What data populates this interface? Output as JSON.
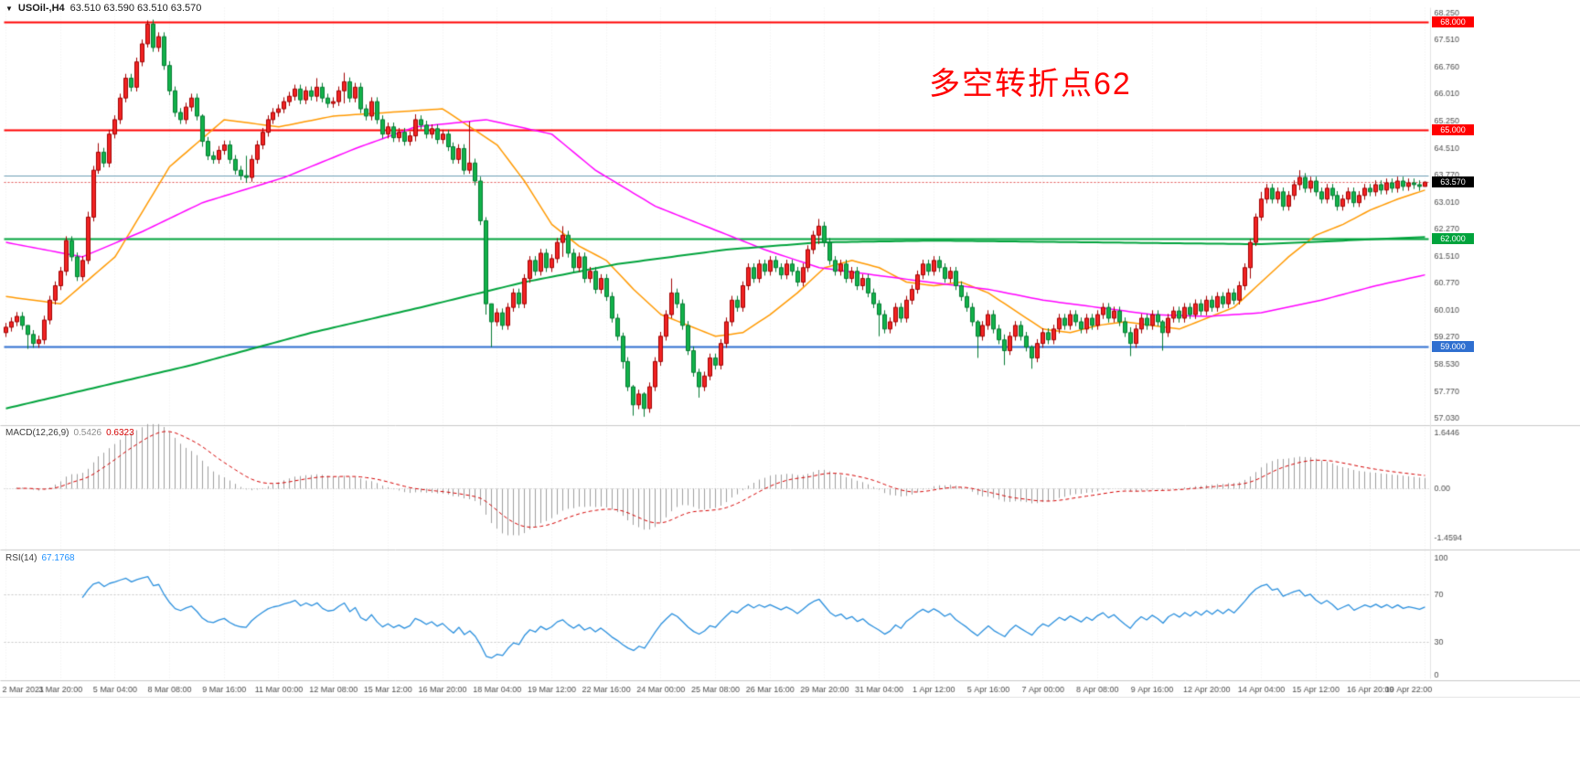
{
  "window": {
    "title_symbol": "USOil-,H4",
    "title_quotes": "63.510 63.590 63.510 63.570"
  },
  "annotation": {
    "text": "多空转折点62",
    "color": "#ff0000"
  },
  "price_axis": {
    "ticks": [
      "68.250",
      "67.510",
      "66.760",
      "66.010",
      "65.250",
      "64.510",
      "63.770",
      "63.010",
      "62.270",
      "61.510",
      "60.770",
      "60.010",
      "59.270",
      "58.530",
      "57.770",
      "57.030"
    ],
    "current": {
      "price": 63.57,
      "label": "63.570",
      "color": "#000000"
    }
  },
  "indicators": {
    "macd": {
      "label": "MACD(12,26,9)",
      "value_main": "0.5426",
      "value_signal": "0.6323",
      "ticks": [
        "1.6446",
        "0.00",
        "-1.4594"
      ],
      "params": {
        "fast": 12,
        "slow": 26,
        "signal": 9
      },
      "histogram_color": "#9e9e9e",
      "signal_color": "#d40000"
    },
    "rsi": {
      "label": "RSI(14)",
      "value": "67.1768",
      "period": 14,
      "ticks": [
        "100",
        "70",
        "30",
        "0"
      ],
      "levels": [
        70,
        30
      ],
      "line_color": "#2a8fdd"
    }
  },
  "chart_data": {
    "type": "candlestick-ohlc",
    "title": "USOil-,H4",
    "symbol": "USOil",
    "timeframe": "H4",
    "visible_range": {
      "start": "2 Mar 2021",
      "end": "19 Apr 2021"
    },
    "price_range": [
      57.03,
      68.25
    ],
    "up_color": "#f22323",
    "down_color": "#12b24a",
    "x_labels": [
      "2 Mar 2021",
      "3 Mar 20:00",
      "5 Mar 04:00",
      "8 Mar 08:00",
      "9 Mar 16:00",
      "11 Mar 00:00",
      "12 Mar 08:00",
      "15 Mar 12:00",
      "16 Mar 20:00",
      "18 Mar 04:00",
      "19 Mar 12:00",
      "22 Mar 16:00",
      "24 Mar 00:00",
      "25 Mar 08:00",
      "26 Mar 16:00",
      "29 Mar 20:00",
      "31 Mar 04:00",
      "1 Apr 12:00",
      "5 Apr 16:00",
      "7 Apr 00:00",
      "8 Apr 08:00",
      "9 Apr 16:00",
      "12 Apr 20:00",
      "14 Apr 04:00",
      "15 Apr 12:00",
      "16 Apr 20:00",
      "19 Apr 22:00"
    ],
    "first_open": 59.4,
    "closes": [
      59.55,
      59.7,
      59.85,
      59.6,
      59.35,
      59.1,
      59.2,
      59.75,
      60.3,
      60.7,
      61.1,
      61.95,
      61.5,
      60.95,
      61.4,
      62.6,
      63.9,
      64.4,
      64.1,
      64.9,
      65.3,
      65.9,
      66.45,
      66.2,
      66.9,
      67.4,
      67.95,
      67.3,
      67.6,
      66.8,
      66.1,
      65.5,
      65.3,
      65.65,
      65.9,
      65.4,
      64.7,
      64.3,
      64.2,
      64.45,
      64.6,
      64.2,
      63.9,
      63.75,
      63.7,
      64.2,
      64.6,
      64.95,
      65.3,
      65.5,
      65.6,
      65.8,
      65.95,
      66.15,
      65.85,
      66.1,
      65.95,
      66.2,
      65.9,
      65.75,
      65.8,
      66.1,
      66.35,
      65.9,
      66.2,
      65.6,
      65.4,
      65.8,
      65.3,
      64.9,
      65.1,
      64.8,
      64.95,
      64.7,
      64.85,
      65.3,
      65.15,
      64.9,
      65.05,
      64.75,
      64.9,
      64.55,
      64.2,
      64.5,
      63.9,
      64.1,
      63.6,
      62.5,
      60.2,
      59.7,
      59.95,
      59.6,
      60.1,
      60.5,
      60.2,
      60.9,
      61.4,
      61.1,
      61.6,
      61.2,
      61.45,
      61.9,
      62.1,
      61.6,
      61.2,
      61.5,
      60.9,
      61.1,
      60.6,
      60.9,
      60.4,
      59.8,
      59.3,
      58.6,
      57.9,
      57.4,
      57.7,
      57.3,
      57.9,
      58.6,
      59.3,
      59.9,
      60.5,
      60.2,
      59.6,
      58.9,
      58.3,
      57.9,
      58.2,
      58.7,
      58.5,
      59.1,
      59.7,
      60.3,
      60.1,
      60.7,
      61.2,
      60.9,
      61.3,
      61.1,
      61.4,
      61.2,
      61.0,
      61.3,
      61.1,
      60.8,
      61.2,
      61.7,
      62.1,
      62.35,
      61.9,
      61.4,
      61.1,
      61.3,
      60.9,
      61.1,
      60.7,
      60.9,
      60.5,
      60.2,
      59.9,
      59.5,
      59.7,
      60.1,
      59.8,
      60.3,
      60.6,
      61.0,
      61.3,
      61.1,
      61.4,
      61.2,
      60.9,
      61.1,
      60.7,
      60.4,
      60.1,
      59.7,
      59.3,
      59.6,
      59.9,
      59.5,
      59.2,
      58.9,
      59.3,
      59.6,
      59.3,
      59.0,
      58.7,
      59.1,
      59.4,
      59.2,
      59.5,
      59.8,
      59.6,
      59.9,
      59.7,
      59.5,
      59.8,
      59.6,
      59.9,
      60.1,
      59.8,
      60.0,
      59.7,
      59.4,
      59.1,
      59.5,
      59.8,
      59.6,
      59.9,
      59.7,
      59.4,
      59.8,
      60.0,
      59.8,
      60.1,
      59.9,
      60.2,
      60.0,
      60.3,
      60.1,
      60.4,
      60.2,
      60.5,
      60.3,
      60.7,
      61.2,
      61.9,
      62.6,
      63.1,
      63.4,
      63.1,
      63.3,
      62.9,
      63.2,
      63.5,
      63.7,
      63.4,
      63.6,
      63.3,
      63.1,
      63.4,
      63.2,
      62.9,
      63.1,
      63.3,
      63.0,
      63.2,
      63.4,
      63.3,
      63.5,
      63.35,
      63.55,
      63.4,
      63.6,
      63.45,
      63.55,
      63.5,
      63.45,
      63.57
    ],
    "extremes": {
      "4": [
        59.6,
        58.95
      ],
      "15": [
        62.75,
        61.3
      ],
      "17": [
        64.65,
        63.8
      ],
      "26": [
        68.05,
        67.3
      ],
      "36": [
        65.45,
        64.55
      ],
      "44": [
        64.3,
        63.55
      ],
      "57": [
        66.45,
        65.8
      ],
      "62": [
        66.6,
        65.75
      ],
      "75": [
        65.45,
        64.7
      ],
      "85": [
        65.25,
        63.8
      ],
      "88": [
        62.6,
        59.9
      ],
      "89": [
        60.2,
        59.0
      ],
      "102": [
        62.35,
        61.5
      ],
      "113": [
        59.4,
        58.4
      ],
      "115": [
        57.95,
        57.1
      ],
      "117": [
        57.75,
        57.07
      ],
      "122": [
        60.9,
        59.8
      ],
      "127": [
        58.4,
        57.6
      ],
      "149": [
        62.55,
        61.85
      ],
      "160": [
        60.3,
        59.3
      ],
      "178": [
        59.75,
        58.7
      ],
      "183": [
        59.35,
        58.5
      ],
      "188": [
        59.05,
        58.4
      ],
      "206": [
        59.55,
        58.75
      ],
      "212": [
        59.75,
        58.9
      ],
      "228": [
        62.0,
        60.9
      ],
      "229": [
        62.7,
        61.8
      ],
      "230": [
        63.3,
        62.5
      ],
      "237": [
        63.9,
        63.35
      ],
      "260": [
        63.59,
        63.51
      ]
    },
    "moving_averages": [
      {
        "name": "ma-fast",
        "color": "#ff9900",
        "width": 1.5,
        "points": [
          [
            0,
            60.4
          ],
          [
            10,
            60.2
          ],
          [
            20,
            61.5
          ],
          [
            30,
            64.0
          ],
          [
            40,
            65.3
          ],
          [
            50,
            65.1
          ],
          [
            60,
            65.4
          ],
          [
            70,
            65.5
          ],
          [
            80,
            65.6
          ],
          [
            90,
            64.6
          ],
          [
            95,
            63.6
          ],
          [
            100,
            62.4
          ],
          [
            105,
            61.8
          ],
          [
            110,
            61.4
          ],
          [
            115,
            60.6
          ],
          [
            120,
            59.9
          ],
          [
            125,
            59.6
          ],
          [
            130,
            59.3
          ],
          [
            135,
            59.4
          ],
          [
            140,
            59.9
          ],
          [
            145,
            60.5
          ],
          [
            150,
            61.2
          ],
          [
            155,
            61.4
          ],
          [
            160,
            61.2
          ],
          [
            165,
            60.8
          ],
          [
            170,
            60.7
          ],
          [
            175,
            60.8
          ],
          [
            180,
            60.5
          ],
          [
            185,
            60.0
          ],
          [
            190,
            59.5
          ],
          [
            195,
            59.4
          ],
          [
            200,
            59.6
          ],
          [
            205,
            59.7
          ],
          [
            210,
            59.6
          ],
          [
            215,
            59.5
          ],
          [
            220,
            59.8
          ],
          [
            225,
            60.1
          ],
          [
            230,
            60.8
          ],
          [
            235,
            61.5
          ],
          [
            240,
            62.1
          ],
          [
            245,
            62.4
          ],
          [
            250,
            62.8
          ],
          [
            255,
            63.1
          ],
          [
            260,
            63.35
          ]
        ]
      },
      {
        "name": "ma-medium",
        "color": "#ff00ff",
        "width": 1.5,
        "points": [
          [
            0,
            61.9
          ],
          [
            14,
            61.5
          ],
          [
            25,
            62.2
          ],
          [
            36,
            63.0
          ],
          [
            51,
            63.7
          ],
          [
            64,
            64.5
          ],
          [
            75,
            65.1
          ],
          [
            88,
            65.3
          ],
          [
            100,
            64.9
          ],
          [
            108,
            63.9
          ],
          [
            119,
            62.9
          ],
          [
            129,
            62.3
          ],
          [
            139,
            61.7
          ],
          [
            149,
            61.2
          ],
          [
            159,
            61.0
          ],
          [
            169,
            60.8
          ],
          [
            180,
            60.6
          ],
          [
            190,
            60.3
          ],
          [
            200,
            60.1
          ],
          [
            210,
            59.9
          ],
          [
            220,
            59.85
          ],
          [
            230,
            59.95
          ],
          [
            241,
            60.3
          ],
          [
            251,
            60.7
          ],
          [
            260,
            61.0
          ]
        ]
      },
      {
        "name": "ma-slow",
        "color": "#00a33c",
        "width": 2,
        "points": [
          [
            0,
            57.3
          ],
          [
            34,
            58.5
          ],
          [
            56,
            59.4
          ],
          [
            76,
            60.1
          ],
          [
            95,
            60.8
          ],
          [
            112,
            61.3
          ],
          [
            132,
            61.7
          ],
          [
            149,
            61.9
          ],
          [
            170,
            61.95
          ],
          [
            200,
            61.9
          ],
          [
            230,
            61.85
          ],
          [
            260,
            62.05
          ]
        ]
      }
    ],
    "horizontal_lines": [
      {
        "price": 68.0,
        "color": "#ff0000",
        "width": 2,
        "label": "68.000"
      },
      {
        "price": 65.0,
        "color": "#ff0000",
        "width": 2,
        "label": "65.000"
      },
      {
        "price": 63.73,
        "color": "#6d9eb5",
        "width": 1,
        "label": null
      },
      {
        "price": 62.0,
        "color": "#00a33c",
        "width": 2,
        "label": "62.000"
      },
      {
        "price": 59.0,
        "color": "#2f6fd0",
        "width": 2,
        "label": "59.000"
      }
    ]
  }
}
